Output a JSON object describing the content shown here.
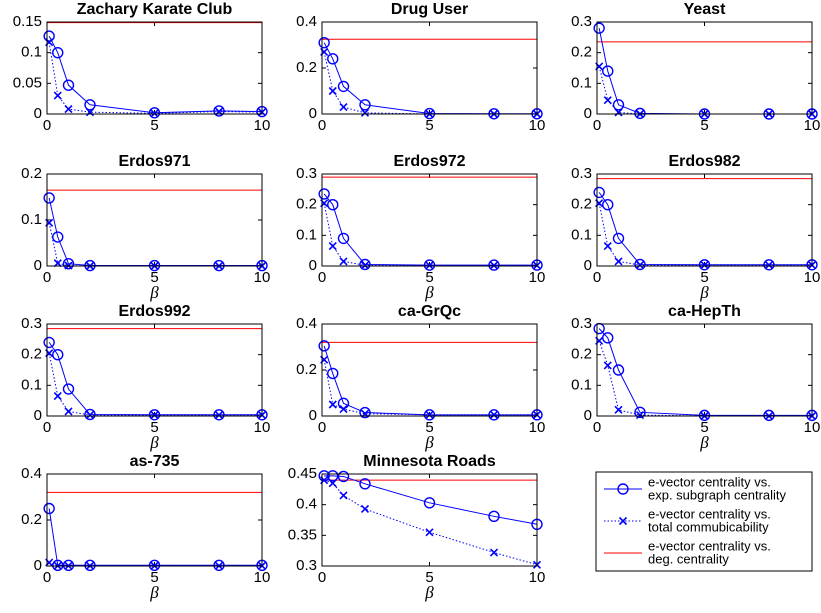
{
  "chart_data": [
    {
      "type": "line",
      "title": "Zachary Karate Club",
      "x": [
        0.1,
        0.5,
        1,
        2,
        5,
        8,
        10
      ],
      "xlim": [
        0,
        10
      ],
      "xticks": [
        0,
        5,
        10
      ],
      "ylim": [
        0,
        0.15
      ],
      "yticks": [
        0,
        0.05,
        0.1,
        0.15
      ],
      "series": [
        {
          "color": "#0000ff",
          "marker": "o",
          "linestyle": "solid",
          "values": [
            0.127,
            0.1,
            0.047,
            0.015,
            0.002,
            0.005,
            0.004
          ]
        },
        {
          "color": "#0000ff",
          "marker": "x",
          "linestyle": "dotted",
          "values": [
            0.117,
            0.03,
            0.008,
            0.003,
            0.001,
            0.004,
            0.003
          ]
        }
      ],
      "reference_line": {
        "color": "#ff0000",
        "value": 0.149
      }
    },
    {
      "type": "line",
      "title": "Drug User",
      "x": [
        0.1,
        0.5,
        1,
        2,
        5,
        8,
        10
      ],
      "xlim": [
        0,
        10
      ],
      "xticks": [
        0,
        5,
        10
      ],
      "ylim": [
        0,
        0.4
      ],
      "yticks": [
        0,
        0.2,
        0.4
      ],
      "series": [
        {
          "color": "#0000ff",
          "marker": "o",
          "linestyle": "solid",
          "values": [
            0.31,
            0.24,
            0.12,
            0.04,
            0.002,
            0.001,
            0.001
          ]
        },
        {
          "color": "#0000ff",
          "marker": "x",
          "linestyle": "dotted",
          "values": [
            0.27,
            0.1,
            0.03,
            0.005,
            0,
            0,
            0
          ]
        }
      ],
      "reference_line": {
        "color": "#ff0000",
        "value": 0.325
      }
    },
    {
      "type": "line",
      "title": "Yeast",
      "x": [
        0.1,
        0.5,
        1,
        2,
        5,
        8,
        10
      ],
      "xlim": [
        0,
        10
      ],
      "xticks": [
        0,
        5,
        10
      ],
      "ylim": [
        0,
        0.3
      ],
      "yticks": [
        0,
        0.1,
        0.2,
        0.3
      ],
      "series": [
        {
          "color": "#0000ff",
          "marker": "o",
          "linestyle": "solid",
          "values": [
            0.28,
            0.14,
            0.03,
            0.002,
            0,
            0,
            0
          ]
        },
        {
          "color": "#0000ff",
          "marker": "x",
          "linestyle": "dotted",
          "values": [
            0.155,
            0.045,
            0.005,
            0,
            0,
            0,
            0
          ]
        }
      ],
      "reference_line": {
        "color": "#ff0000",
        "value": 0.235
      }
    },
    {
      "type": "line",
      "title": "Erdos971",
      "xlabel": "β",
      "x": [
        0.1,
        0.5,
        1,
        2,
        5,
        8,
        10
      ],
      "xlim": [
        0,
        10
      ],
      "xticks": [
        0,
        5,
        10
      ],
      "ylim": [
        0,
        0.2
      ],
      "yticks": [
        0,
        0.1,
        0.2
      ],
      "series": [
        {
          "color": "#0000ff",
          "marker": "o",
          "linestyle": "solid",
          "values": [
            0.148,
            0.063,
            0.005,
            0.001,
            0.001,
            0.001,
            0.001
          ]
        },
        {
          "color": "#0000ff",
          "marker": "x",
          "linestyle": "dotted",
          "values": [
            0.094,
            0.006,
            0.001,
            0,
            0,
            0,
            0
          ]
        }
      ],
      "reference_line": {
        "color": "#ff0000",
        "value": 0.165
      }
    },
    {
      "type": "line",
      "title": "Erdos972",
      "xlabel": "β",
      "x": [
        0.1,
        0.5,
        1,
        2,
        5,
        8,
        10
      ],
      "xlim": [
        0,
        10
      ],
      "xticks": [
        0,
        5,
        10
      ],
      "ylim": [
        0,
        0.3
      ],
      "yticks": [
        0,
        0.1,
        0.2,
        0.3
      ],
      "series": [
        {
          "color": "#0000ff",
          "marker": "o",
          "linestyle": "solid",
          "values": [
            0.235,
            0.2,
            0.09,
            0.005,
            0.003,
            0.003,
            0.003
          ]
        },
        {
          "color": "#0000ff",
          "marker": "x",
          "linestyle": "dotted",
          "values": [
            0.205,
            0.065,
            0.015,
            0.002,
            0.002,
            0.002,
            0.002
          ]
        }
      ],
      "reference_line": {
        "color": "#ff0000",
        "value": 0.29
      }
    },
    {
      "type": "line",
      "title": "Erdos982",
      "xlabel": "β",
      "x": [
        0.1,
        0.5,
        1,
        2,
        5,
        8,
        10
      ],
      "xlim": [
        0,
        10
      ],
      "xticks": [
        0,
        5,
        10
      ],
      "ylim": [
        0,
        0.3
      ],
      "yticks": [
        0,
        0.1,
        0.2,
        0.3
      ],
      "series": [
        {
          "color": "#0000ff",
          "marker": "o",
          "linestyle": "solid",
          "values": [
            0.24,
            0.2,
            0.09,
            0.005,
            0.004,
            0.004,
            0.004
          ]
        },
        {
          "color": "#0000ff",
          "marker": "x",
          "linestyle": "dotted",
          "values": [
            0.205,
            0.065,
            0.015,
            0.003,
            0.003,
            0.003,
            0.003
          ]
        }
      ],
      "reference_line": {
        "color": "#ff0000",
        "value": 0.285
      }
    },
    {
      "type": "line",
      "title": "Erdos992",
      "xlabel": "β",
      "x": [
        0.1,
        0.5,
        1,
        2,
        5,
        8,
        10
      ],
      "xlim": [
        0,
        10
      ],
      "xticks": [
        0,
        5,
        10
      ],
      "ylim": [
        0,
        0.3
      ],
      "yticks": [
        0,
        0.1,
        0.2,
        0.3
      ],
      "series": [
        {
          "color": "#0000ff",
          "marker": "o",
          "linestyle": "solid",
          "values": [
            0.24,
            0.2,
            0.088,
            0.005,
            0.004,
            0.004,
            0.004
          ]
        },
        {
          "color": "#0000ff",
          "marker": "x",
          "linestyle": "dotted",
          "values": [
            0.205,
            0.065,
            0.015,
            0.003,
            0.003,
            0.003,
            0.003
          ]
        }
      ],
      "reference_line": {
        "color": "#ff0000",
        "value": 0.285
      }
    },
    {
      "type": "line",
      "title": "ca-GrQc",
      "xlabel": "β",
      "x": [
        0.1,
        0.5,
        1,
        2,
        5,
        8,
        10
      ],
      "xlim": [
        0,
        10
      ],
      "xticks": [
        0,
        5,
        10
      ],
      "ylim": [
        0,
        0.4
      ],
      "yticks": [
        0,
        0.2,
        0.4
      ],
      "series": [
        {
          "color": "#0000ff",
          "marker": "o",
          "linestyle": "solid",
          "values": [
            0.305,
            0.185,
            0.055,
            0.015,
            0.005,
            0.005,
            0.005
          ]
        },
        {
          "color": "#0000ff",
          "marker": "x",
          "linestyle": "dotted",
          "values": [
            0.245,
            0.05,
            0.03,
            0.01,
            0.005,
            0.005,
            0.005
          ]
        }
      ],
      "reference_line": {
        "color": "#ff0000",
        "value": 0.32
      }
    },
    {
      "type": "line",
      "title": "ca-HepTh",
      "xlabel": "β",
      "x": [
        0.1,
        0.5,
        1,
        2,
        5,
        8,
        10
      ],
      "xlim": [
        0,
        10
      ],
      "xticks": [
        0,
        5,
        10
      ],
      "ylim": [
        0,
        0.3
      ],
      "yticks": [
        0,
        0.1,
        0.2,
        0.3
      ],
      "series": [
        {
          "color": "#0000ff",
          "marker": "o",
          "linestyle": "solid",
          "values": [
            0.285,
            0.255,
            0.15,
            0.012,
            0.002,
            0.002,
            0.002
          ]
        },
        {
          "color": "#0000ff",
          "marker": "x",
          "linestyle": "dotted",
          "values": [
            0.245,
            0.165,
            0.02,
            0.003,
            0,
            0,
            0
          ]
        }
      ],
      "reference_line": {
        "color": "#ff0000",
        "value": 0.3
      }
    },
    {
      "type": "line",
      "title": "as-735",
      "xlabel": "β",
      "x": [
        0.1,
        0.5,
        1,
        2,
        5,
        8,
        10
      ],
      "xlim": [
        0,
        10
      ],
      "xticks": [
        0,
        5,
        10
      ],
      "ylim": [
        0,
        0.4
      ],
      "yticks": [
        0,
        0.2,
        0.4
      ],
      "series": [
        {
          "color": "#0000ff",
          "marker": "o",
          "linestyle": "solid",
          "values": [
            0.25,
            0.003,
            0.003,
            0.003,
            0.003,
            0.003,
            0.003
          ]
        },
        {
          "color": "#0000ff",
          "marker": "x",
          "linestyle": "dotted",
          "values": [
            0.015,
            0.001,
            0.001,
            0.001,
            0.001,
            0.001,
            0.001
          ]
        }
      ],
      "reference_line": {
        "color": "#ff0000",
        "value": 0.32
      }
    },
    {
      "type": "line",
      "title": "Minnesota Roads",
      "xlabel": "β",
      "x": [
        0.1,
        0.5,
        1,
        2,
        5,
        8,
        10
      ],
      "xlim": [
        0,
        10
      ],
      "xticks": [
        0,
        5,
        10
      ],
      "ylim": [
        0.3,
        0.45
      ],
      "yticks": [
        0.3,
        0.35,
        0.4,
        0.45
      ],
      "series": [
        {
          "color": "#0000ff",
          "marker": "o",
          "linestyle": "solid",
          "values": [
            0.447,
            0.447,
            0.446,
            0.434,
            0.403,
            0.381,
            0.368
          ]
        },
        {
          "color": "#0000ff",
          "marker": "x",
          "linestyle": "dotted",
          "values": [
            0.44,
            0.435,
            0.415,
            0.393,
            0.355,
            0.322,
            0.302
          ]
        }
      ],
      "reference_line": {
        "color": "#ff0000",
        "value": 0.44
      }
    }
  ],
  "legend": {
    "entries": [
      {
        "color": "#0000ff",
        "marker": "o",
        "linestyle": "solid",
        "lines": [
          "e-vector centrality vs.",
          "exp. subgraph centrality"
        ]
      },
      {
        "color": "#0000ff",
        "marker": "x",
        "linestyle": "dotted",
        "lines": [
          "e-vector centrality vs.",
          "total commubicability"
        ]
      },
      {
        "color": "#ff0000",
        "marker": "none",
        "linestyle": "solid",
        "lines": [
          "e-vector centrality vs.",
          "deg. centrality"
        ]
      }
    ]
  }
}
